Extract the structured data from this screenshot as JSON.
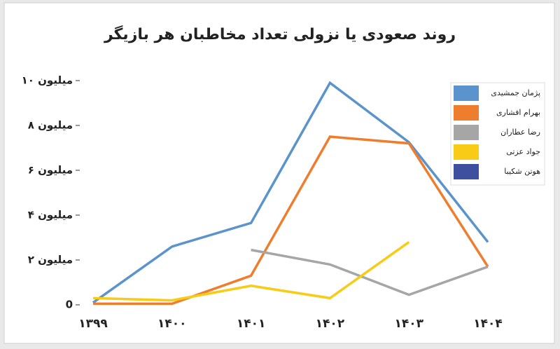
{
  "chart_data": {
    "type": "line",
    "title": "روند صعودی یا نزولی تعداد مخاطبان هر بازیگر",
    "categories": [
      "۱۳۹۹",
      "۱۴۰۰",
      "۱۴۰۱",
      "۱۴۰۲",
      "۱۴۰۳",
      "۱۴۰۴"
    ],
    "series": [
      {
        "name": "پژمان جمشیدی",
        "color": "#5b93cc",
        "values": [
          0.1,
          2.6,
          3.65,
          9.9,
          7.25,
          2.8
        ]
      },
      {
        "name": "بهرام افشاری",
        "color": "#ef7d2e",
        "values": [
          0.05,
          0.05,
          1.3,
          7.5,
          7.2,
          1.7
        ]
      },
      {
        "name": "رضا عطاران",
        "color": "#a6a6a6",
        "values": [
          null,
          null,
          2.45,
          1.8,
          0.45,
          1.7
        ]
      },
      {
        "name": "جواد عزتی",
        "color": "#f7cb16",
        "values": [
          0.3,
          0.2,
          0.85,
          0.3,
          2.8,
          null
        ]
      },
      {
        "name": "هوتن شکیبا",
        "color": "#3d4f9e",
        "values": [
          null,
          null,
          null,
          null,
          null,
          null
        ]
      }
    ],
    "ylim": [
      0,
      10
    ],
    "yticks": [
      0,
      {
        "value": 2,
        "label": "۲ میلیون"
      },
      {
        "value": 4,
        "label": "۴ میلیون"
      },
      {
        "value": 6,
        "label": "۶ میلیون"
      },
      {
        "value": 8,
        "label": "۸ میلیون"
      },
      {
        "value": 10,
        "label": "۱۰ میلیون"
      }
    ],
    "legend": "upper right"
  }
}
